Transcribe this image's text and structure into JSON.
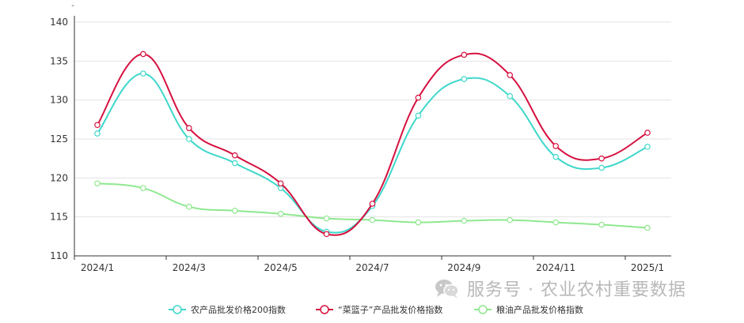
{
  "chart_data": {
    "type": "line",
    "y_unit_label": "-",
    "ylim": [
      110,
      140
    ],
    "y_ticks": [
      110,
      115,
      120,
      125,
      130,
      135,
      140
    ],
    "grid": true,
    "legend_position": "bottom-center",
    "x": [
      "2024/1",
      "2024/2",
      "2024/3",
      "2024/4",
      "2024/5",
      "2024/6",
      "2024/7",
      "2024/8",
      "2024/9",
      "2024/10",
      "2024/11",
      "2024/12",
      "2025/1"
    ],
    "x_tick_labels": [
      "2024/1",
      "2024/3",
      "2024/5",
      "2024/7",
      "2024/9",
      "2024/11",
      "2025/1"
    ],
    "series": [
      {
        "name": "农产品批发价格200指数",
        "color": "#3ed8cb",
        "values": [
          125.7,
          133.4,
          125.0,
          121.9,
          118.7,
          113.1,
          116.4,
          128.0,
          132.7,
          130.5,
          122.7,
          121.3,
          124.0
        ]
      },
      {
        "name": "“菜篮子”产品批发价格指数",
        "color": "#d6103f",
        "values": [
          126.8,
          135.9,
          126.4,
          122.9,
          119.3,
          112.8,
          116.7,
          130.3,
          135.8,
          133.2,
          124.1,
          122.5,
          125.8
        ]
      },
      {
        "name": "粮油产品批发价格指数",
        "color": "#8fe88f",
        "values": [
          119.3,
          118.7,
          116.3,
          115.8,
          115.4,
          114.8,
          114.6,
          114.3,
          114.5,
          114.6,
          114.3,
          114.0,
          113.6
        ]
      }
    ]
  },
  "watermark": {
    "text": "服务号 · 农业农村重要数据",
    "logo_icon": "wechat-logo-icon"
  }
}
